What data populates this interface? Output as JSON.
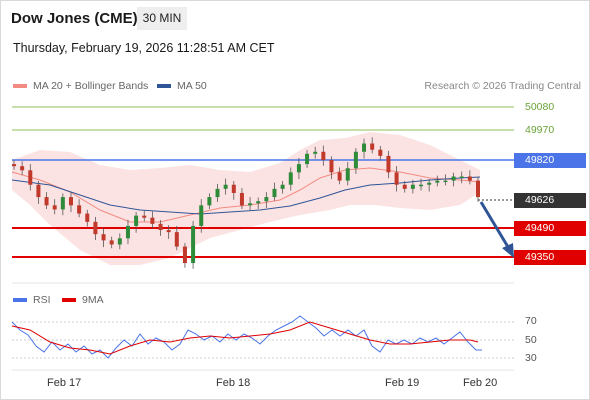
{
  "header": {
    "title": "Dow Jones (CME)",
    "timeframe": "30 MIN",
    "datetime": "Thursday, February 19, 2026 11:28:51 AM CET"
  },
  "legend": {
    "items": [
      {
        "label": "MA 20 + Bollinger Bands",
        "color": "#f28b82"
      },
      {
        "label": "MA 50",
        "color": "#2f5597"
      }
    ],
    "credit": "Research © 2026 Trading Central"
  },
  "levels": [
    {
      "value": "50080",
      "kind": "resistance-minor",
      "color": "#8fbf5a"
    },
    {
      "value": "49970",
      "kind": "resistance-minor",
      "color": "#8fbf5a"
    },
    {
      "value": "49820",
      "kind": "pivot",
      "color": "#4a74e8"
    },
    {
      "value": "49626",
      "kind": "last-price",
      "color": "#333333"
    },
    {
      "value": "49490",
      "kind": "target",
      "color": "#e00000"
    },
    {
      "value": "49350",
      "kind": "target",
      "color": "#e00000"
    }
  ],
  "rsi_panel": {
    "legend": [
      {
        "label": "RSI",
        "color": "#4a74e8"
      },
      {
        "label": "9MA",
        "color": "#e00000"
      }
    ],
    "ticks": [
      "70",
      "50",
      "30"
    ]
  },
  "x_axis": {
    "dates": [
      "Feb 17",
      "Feb 18",
      "Feb 19",
      "Feb 20"
    ]
  },
  "chart_data": {
    "type": "candlestick",
    "y_axis_levels": [
      50080,
      49970,
      49820,
      49626,
      49490,
      49350
    ],
    "approx_close_series": [
      49790,
      49770,
      49700,
      49640,
      49600,
      49580,
      49640,
      49600,
      49560,
      49520,
      49460,
      49430,
      49410,
      49440,
      49500,
      49550,
      49540,
      49510,
      49480,
      49470,
      49400,
      49320,
      49500,
      49600,
      49640,
      49680,
      49700,
      49660,
      49600,
      49610,
      49620,
      49640,
      49680,
      49700,
      49760,
      49800,
      49850,
      49860,
      49820,
      49760,
      49720,
      49780,
      49860,
      49900,
      49870,
      49840,
      49760,
      49700,
      49680,
      49700,
      49700,
      49710,
      49720,
      49720,
      49740,
      49740,
      49720,
      49640
    ],
    "rsi_ticks": [
      70,
      50,
      30
    ]
  }
}
